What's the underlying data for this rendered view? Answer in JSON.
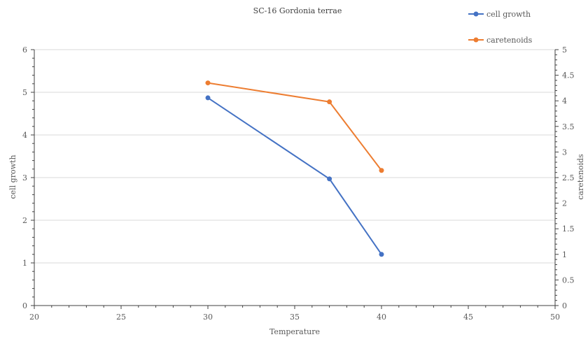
{
  "chart_data": {
    "type": "line",
    "title": "SC-16 Gordonia terrae",
    "xlabel": "Temperature",
    "ylabel": "cell growth",
    "y2label": "caretenoids",
    "xlim": [
      20,
      50
    ],
    "xticks": [
      20,
      25,
      30,
      35,
      40,
      45,
      50
    ],
    "ylim": [
      0,
      6
    ],
    "yticks": [
      0,
      1,
      2,
      3,
      4,
      5,
      6
    ],
    "y2lim": [
      0,
      5
    ],
    "y2ticks": [
      "0",
      "0.5",
      "1",
      "1.5",
      "2",
      "2.5",
      "3",
      "3.5",
      "4",
      "4.5",
      "5"
    ],
    "grid": true,
    "legend_position": "top-right",
    "series": [
      {
        "name": "cell growth",
        "axis": "left",
        "color": "#4472C4",
        "x": [
          30,
          37,
          40
        ],
        "y": [
          4.87,
          2.97,
          1.2
        ]
      },
      {
        "name": "caretenoids",
        "axis": "right",
        "color": "#ED7D31",
        "x": [
          30,
          37,
          40
        ],
        "y": [
          4.35,
          3.98,
          2.64
        ]
      }
    ]
  }
}
